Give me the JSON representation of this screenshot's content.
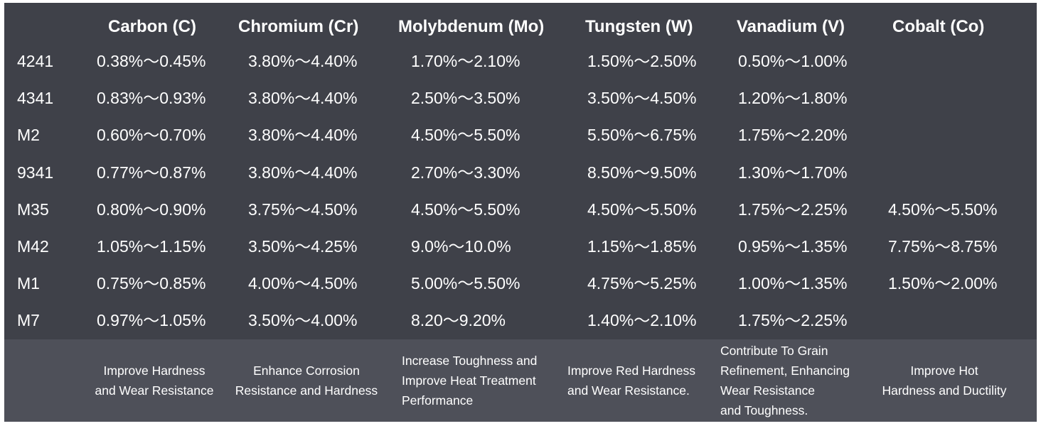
{
  "columns": [
    "Carbon (C)",
    "Chromium (Cr)",
    "Molybdenum (Mo)",
    "Tungsten (W)",
    "Vanadium (V)",
    "Cobalt (Co)"
  ],
  "rows": [
    {
      "name": "4241",
      "values": [
        "0.38%～0.45%",
        "3.80%～4.40%",
        "1.70%～2.10%",
        "1.50%～2.50%",
        "0.50%～1.00%",
        ""
      ]
    },
    {
      "name": "4341",
      "values": [
        "0.83%～0.93%",
        "3.80%～4.40%",
        "2.50%～3.50%",
        "3.50%～4.50%",
        "1.20%～1.80%",
        ""
      ]
    },
    {
      "name": "M2",
      "values": [
        "0.60%～0.70%",
        "3.80%～4.40%",
        "4.50%～5.50%",
        "5.50%～6.75%",
        "1.75%～2.20%",
        ""
      ]
    },
    {
      "name": "9341",
      "values": [
        "0.77%～0.87%",
        "3.80%～4.40%",
        "2.70%～3.30%",
        "8.50%～9.50%",
        "1.30%～1.70%",
        ""
      ]
    },
    {
      "name": "M35",
      "values": [
        "0.80%～0.90%",
        "3.75%～4.50%",
        "4.50%～5.50%",
        "4.50%～5.50%",
        "1.75%～2.25%",
        "4.50%～5.50%"
      ]
    },
    {
      "name": "M42",
      "values": [
        "1.05%～1.15%",
        "3.50%～4.25%",
        "9.0%～10.0%",
        "1.15%～1.85%",
        "0.95%～1.35%",
        "7.75%～8.75%"
      ]
    },
    {
      "name": "M1",
      "values": [
        "0.75%～0.85%",
        "4.00%～4.50%",
        "5.00%～5.50%",
        "4.75%～5.25%",
        "1.00%～1.35%",
        "1.50%～2.00%"
      ]
    },
    {
      "name": "M7",
      "values": [
        "0.97%～1.05%",
        "3.50%～4.00%",
        "8.20～9.20%",
        "1.40%～2.10%",
        "1.75%～2.25%",
        ""
      ]
    }
  ],
  "descriptions": [
    [
      "Improve Hardness",
      "and Wear Resistance"
    ],
    [
      "Enhance Corrosion",
      "Resistance and Hardness"
    ],
    [
      "Increase Toughness and",
      "Improve Heat Treatment",
      "Performance"
    ],
    [
      "Improve Red Hardness",
      "and Wear Resistance."
    ],
    [
      "Contribute To Grain",
      "Refinement, Enhancing",
      "Wear Resistance",
      "and Toughness."
    ],
    [
      "Improve Hot",
      "Hardness and Ductility"
    ]
  ]
}
